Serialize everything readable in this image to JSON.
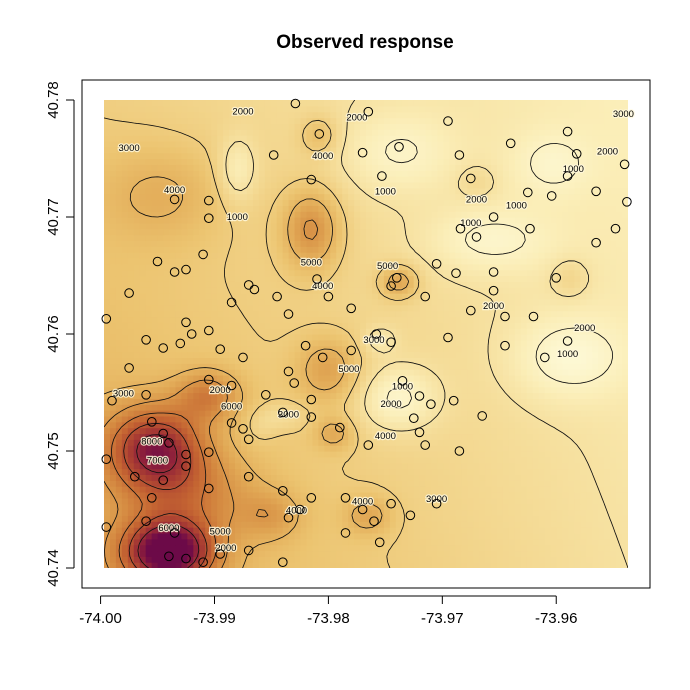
{
  "chart_data": {
    "type": "heatmap",
    "title": "Observed response",
    "xlabel": "",
    "ylabel": "",
    "xlim": [
      -74.0,
      -73.953
    ],
    "ylim": [
      40.74,
      40.78
    ],
    "x_ticks": [
      "-74.00",
      "-73.99",
      "-73.98",
      "-73.97",
      "-73.96"
    ],
    "x_tick_values": [
      -74.0,
      -73.99,
      -73.98,
      -73.97,
      -73.96
    ],
    "y_ticks": [
      "40.74",
      "40.75",
      "40.76",
      "40.77",
      "40.78"
    ],
    "y_tick_values": [
      40.74,
      40.75,
      40.76,
      40.77,
      40.78
    ],
    "color_scale": {
      "low_color": "#fdf6cf",
      "mid_color": "#e0a050",
      "high_color": "#7a0b3b",
      "min_value": 500,
      "max_value": 9000
    },
    "contour_levels": [
      1000,
      2000,
      3000,
      4000,
      5000,
      6000,
      7000,
      8000
    ],
    "contour_labels": [
      {
        "text": "2000",
        "x": -73.9875,
        "y": 40.779
      },
      {
        "text": "3000",
        "x": -73.9975,
        "y": 40.7759
      },
      {
        "text": "4000",
        "x": -73.9935,
        "y": 40.7723
      },
      {
        "text": "1000",
        "x": -73.988,
        "y": 40.77
      },
      {
        "text": "4000",
        "x": -73.9805,
        "y": 40.7752
      },
      {
        "text": "2000",
        "x": -73.9775,
        "y": 40.7785
      },
      {
        "text": "1000",
        "x": -73.975,
        "y": 40.7722
      },
      {
        "text": "5000",
        "x": -73.9815,
        "y": 40.7661
      },
      {
        "text": "4000",
        "x": -73.9805,
        "y": 40.7641
      },
      {
        "text": "5000",
        "x": -73.9748,
        "y": 40.7658
      },
      {
        "text": "3000",
        "x": -73.976,
        "y": 40.7595
      },
      {
        "text": "5000",
        "x": -73.9782,
        "y": 40.757
      },
      {
        "text": "2000",
        "x": -73.967,
        "y": 40.7715
      },
      {
        "text": "1000",
        "x": -73.9635,
        "y": 40.771
      },
      {
        "text": "1000",
        "x": -73.9675,
        "y": 40.7695
      },
      {
        "text": "2000",
        "x": -73.9655,
        "y": 40.7624
      },
      {
        "text": "1000",
        "x": -73.9585,
        "y": 40.7741
      },
      {
        "text": "2000",
        "x": -73.9555,
        "y": 40.7756
      },
      {
        "text": "3000",
        "x": -73.9541,
        "y": 40.7788
      },
      {
        "text": "2000",
        "x": -73.9575,
        "y": 40.7605
      },
      {
        "text": "1000",
        "x": -73.959,
        "y": 40.7583
      },
      {
        "text": "3000",
        "x": -73.998,
        "y": 40.7549
      },
      {
        "text": "6000",
        "x": -73.9885,
        "y": 40.7538
      },
      {
        "text": "2000",
        "x": -73.9895,
        "y": 40.7552
      },
      {
        "text": "8000",
        "x": -73.9955,
        "y": 40.7508
      },
      {
        "text": "7000",
        "x": -73.995,
        "y": 40.7492
      },
      {
        "text": "3000",
        "x": -73.9835,
        "y": 40.7531
      },
      {
        "text": "1000",
        "x": -73.9735,
        "y": 40.7555
      },
      {
        "text": "2000",
        "x": -73.9745,
        "y": 40.754
      },
      {
        "text": "4000",
        "x": -73.975,
        "y": 40.7513
      },
      {
        "text": "3000",
        "x": -73.9705,
        "y": 40.7459
      },
      {
        "text": "4000",
        "x": -73.9828,
        "y": 40.7449
      },
      {
        "text": "4000",
        "x": -73.977,
        "y": 40.7457
      },
      {
        "text": "6000",
        "x": -73.994,
        "y": 40.7434
      },
      {
        "text": "5000",
        "x": -73.9895,
        "y": 40.7431
      },
      {
        "text": "2000",
        "x": -73.989,
        "y": 40.7417
      }
    ],
    "observations": [
      [
        -73.9829,
        40.7797
      ],
      [
        -73.9808,
        40.7771
      ],
      [
        -73.9765,
        40.779
      ],
      [
        -73.9848,
        40.7753
      ],
      [
        -73.9935,
        40.7715
      ],
      [
        -73.9905,
        40.7714
      ],
      [
        -73.9905,
        40.7699
      ],
      [
        -73.9815,
        40.7732
      ],
      [
        -73.977,
        40.7755
      ],
      [
        -73.9753,
        40.7735
      ],
      [
        -73.9738,
        40.776
      ],
      [
        -73.9695,
        40.7782
      ],
      [
        -73.9685,
        40.7753
      ],
      [
        -73.9675,
        40.7733
      ],
      [
        -73.964,
        40.7763
      ],
      [
        -73.959,
        40.7773
      ],
      [
        -73.9625,
        40.7721
      ],
      [
        -73.9604,
        40.7718
      ],
      [
        -73.9582,
        40.7754
      ],
      [
        -73.9565,
        40.7722
      ],
      [
        -73.954,
        40.7745
      ],
      [
        -73.959,
        40.7735
      ],
      [
        -73.9538,
        40.7713
      ],
      [
        -73.9548,
        40.769
      ],
      [
        -73.9527,
        40.7665
      ],
      [
        -73.9565,
        40.7678
      ],
      [
        -73.9623,
        40.769
      ],
      [
        -73.9655,
        40.77
      ],
      [
        -73.967,
        40.7683
      ],
      [
        -73.9684,
        40.769
      ],
      [
        -73.9688,
        40.7652
      ],
      [
        -73.9655,
        40.7653
      ],
      [
        -73.96,
        40.7648
      ],
      [
        -73.962,
        40.7615
      ],
      [
        -73.959,
        40.7594
      ],
      [
        -73.961,
        40.758
      ],
      [
        -73.9995,
        40.7613
      ],
      [
        -73.996,
        40.7595
      ],
      [
        -73.9975,
        40.7571
      ],
      [
        -73.999,
        40.7543
      ],
      [
        -73.9975,
        40.7635
      ],
      [
        -73.995,
        40.7662
      ],
      [
        -73.9935,
        40.7653
      ],
      [
        -73.9925,
        40.7655
      ],
      [
        -73.991,
        40.7668
      ],
      [
        -73.9925,
        40.761
      ],
      [
        -73.9905,
        40.7603
      ],
      [
        -73.992,
        40.76
      ],
      [
        -73.9885,
        40.7627
      ],
      [
        -73.987,
        40.7642
      ],
      [
        -73.9865,
        40.7638
      ],
      [
        -73.9845,
        40.7632
      ],
      [
        -73.9835,
        40.7617
      ],
      [
        -73.981,
        40.7647
      ],
      [
        -73.98,
        40.7632
      ],
      [
        -73.978,
        40.7622
      ],
      [
        -73.9745,
        40.7641
      ],
      [
        -73.974,
        40.7648
      ],
      [
        -73.9715,
        40.7632
      ],
      [
        -73.9705,
        40.766
      ],
      [
        -73.9675,
        40.762
      ],
      [
        -73.9655,
        40.7637
      ],
      [
        -73.9645,
        40.7615
      ],
      [
        -73.9645,
        40.759
      ],
      [
        -73.9695,
        40.7597
      ],
      [
        -73.9745,
        40.7593
      ],
      [
        -73.9758,
        40.76
      ],
      [
        -73.978,
        40.7586
      ],
      [
        -73.982,
        40.759
      ],
      [
        -73.9805,
        40.758
      ],
      [
        -73.9835,
        40.7568
      ],
      [
        -73.983,
        40.7558
      ],
      [
        -73.9875,
        40.758
      ],
      [
        -73.9895,
        40.7587
      ],
      [
        -73.993,
        40.7592
      ],
      [
        -73.9945,
        40.7588
      ],
      [
        -73.9905,
        40.7561
      ],
      [
        -73.9885,
        40.7556
      ],
      [
        -73.9855,
        40.7548
      ],
      [
        -73.9815,
        40.7544
      ],
      [
        -73.996,
        40.7548
      ],
      [
        -73.9955,
        40.7525
      ],
      [
        -73.9945,
        40.7515
      ],
      [
        -73.994,
        40.7507
      ],
      [
        -73.9925,
        40.7497
      ],
      [
        -73.9905,
        40.7499
      ],
      [
        -73.9885,
        40.7524
      ],
      [
        -73.9875,
        40.7519
      ],
      [
        -73.987,
        40.751
      ],
      [
        -73.984,
        40.7533
      ],
      [
        -73.9815,
        40.7529
      ],
      [
        -73.979,
        40.752
      ],
      [
        -73.9765,
        40.7505
      ],
      [
        -73.9735,
        40.756
      ],
      [
        -73.972,
        40.7547
      ],
      [
        -73.971,
        40.754
      ],
      [
        -73.9725,
        40.7528
      ],
      [
        -73.972,
        40.7516
      ],
      [
        -73.969,
        40.7543
      ],
      [
        -73.9665,
        40.753
      ],
      [
        -73.9685,
        40.75
      ],
      [
        -73.9715,
        40.7505
      ],
      [
        -73.9995,
        40.7493
      ],
      [
        -73.9955,
        40.746
      ],
      [
        -73.997,
        40.7478
      ],
      [
        -73.9945,
        40.7475
      ],
      [
        -73.9925,
        40.7487
      ],
      [
        -73.9905,
        40.7468
      ],
      [
        -73.987,
        40.7478
      ],
      [
        -73.984,
        40.7466
      ],
      [
        -73.9825,
        40.745
      ],
      [
        -73.9815,
        40.746
      ],
      [
        -73.9785,
        40.746
      ],
      [
        -73.977,
        40.745
      ],
      [
        -73.9745,
        40.7455
      ],
      [
        -73.976,
        40.744
      ],
      [
        -73.9728,
        40.7445
      ],
      [
        -73.9705,
        40.7455
      ],
      [
        -73.9785,
        40.743
      ],
      [
        -73.9755,
        40.7422
      ],
      [
        -73.9835,
        40.7443
      ],
      [
        -73.987,
        40.7415
      ],
      [
        -73.9895,
        40.7412
      ],
      [
        -73.991,
        40.7405
      ],
      [
        -73.9925,
        40.7408
      ],
      [
        -73.994,
        40.741
      ],
      [
        -73.996,
        40.744
      ],
      [
        -73.9995,
        40.7435
      ],
      [
        -73.9935,
        40.743
      ],
      [
        -73.984,
        40.7405
      ]
    ]
  }
}
